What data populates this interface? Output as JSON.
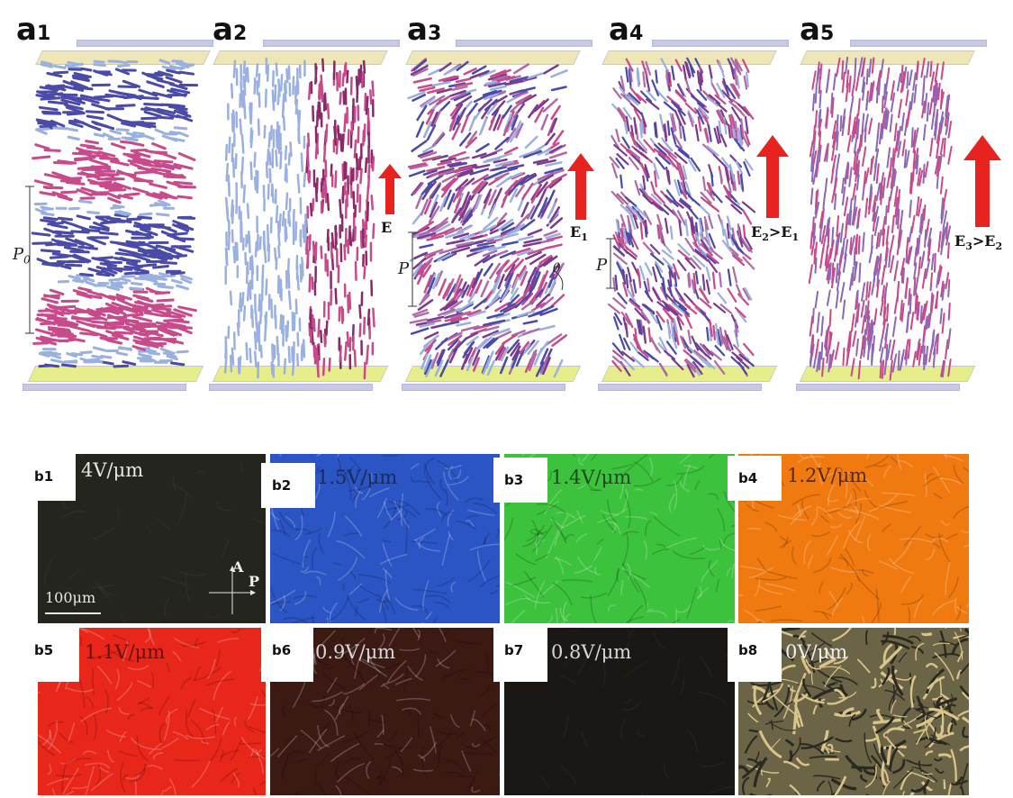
{
  "panel_a": [
    {
      "main": "a",
      "sub": "1",
      "field_label": "",
      "pitch_label": "P0"
    },
    {
      "main": "a",
      "sub": "2",
      "field_label": "E",
      "pitch_label": ""
    },
    {
      "main": "a",
      "sub": "3",
      "field_label": "E1",
      "pitch_label": "P",
      "angle_label": "θ"
    },
    {
      "main": "a",
      "sub": "4",
      "field_label": "E2>E1",
      "pitch_label": "P"
    },
    {
      "main": "a",
      "sub": "5",
      "field_label": "E3>E2",
      "pitch_label": ""
    }
  ],
  "panel_b": [
    {
      "label": "b1",
      "voltage": "4V/μm",
      "bg": "#25251f"
    },
    {
      "label": "b2",
      "voltage": "1.5V/μm",
      "bg": "#2b55c4"
    },
    {
      "label": "b3",
      "voltage": "1.4V/μm",
      "bg": "#3cc23c"
    },
    {
      "label": "b4",
      "voltage": "1.2V/μm",
      "bg": "#f07a10"
    },
    {
      "label": "b5",
      "voltage": "1.1V/μm",
      "bg": "#e8261a"
    },
    {
      "label": "b6",
      "voltage": "0.9V/μm",
      "bg": "#3a1a12"
    },
    {
      "label": "b7",
      "voltage": "0.8V/μm",
      "bg": "#1b1714"
    },
    {
      "label": "b8",
      "voltage": "0V/μm",
      "bg": "#6b6446"
    }
  ],
  "scale_bar": "100μm",
  "polarizer": {
    "analyzer": "A",
    "polarizer": "P"
  },
  "colors": {
    "arrow": "#e8231f",
    "rod_blue": "#4a4aa8",
    "rod_pink": "#c84a8a",
    "rod_light": "#9ab0e0"
  }
}
